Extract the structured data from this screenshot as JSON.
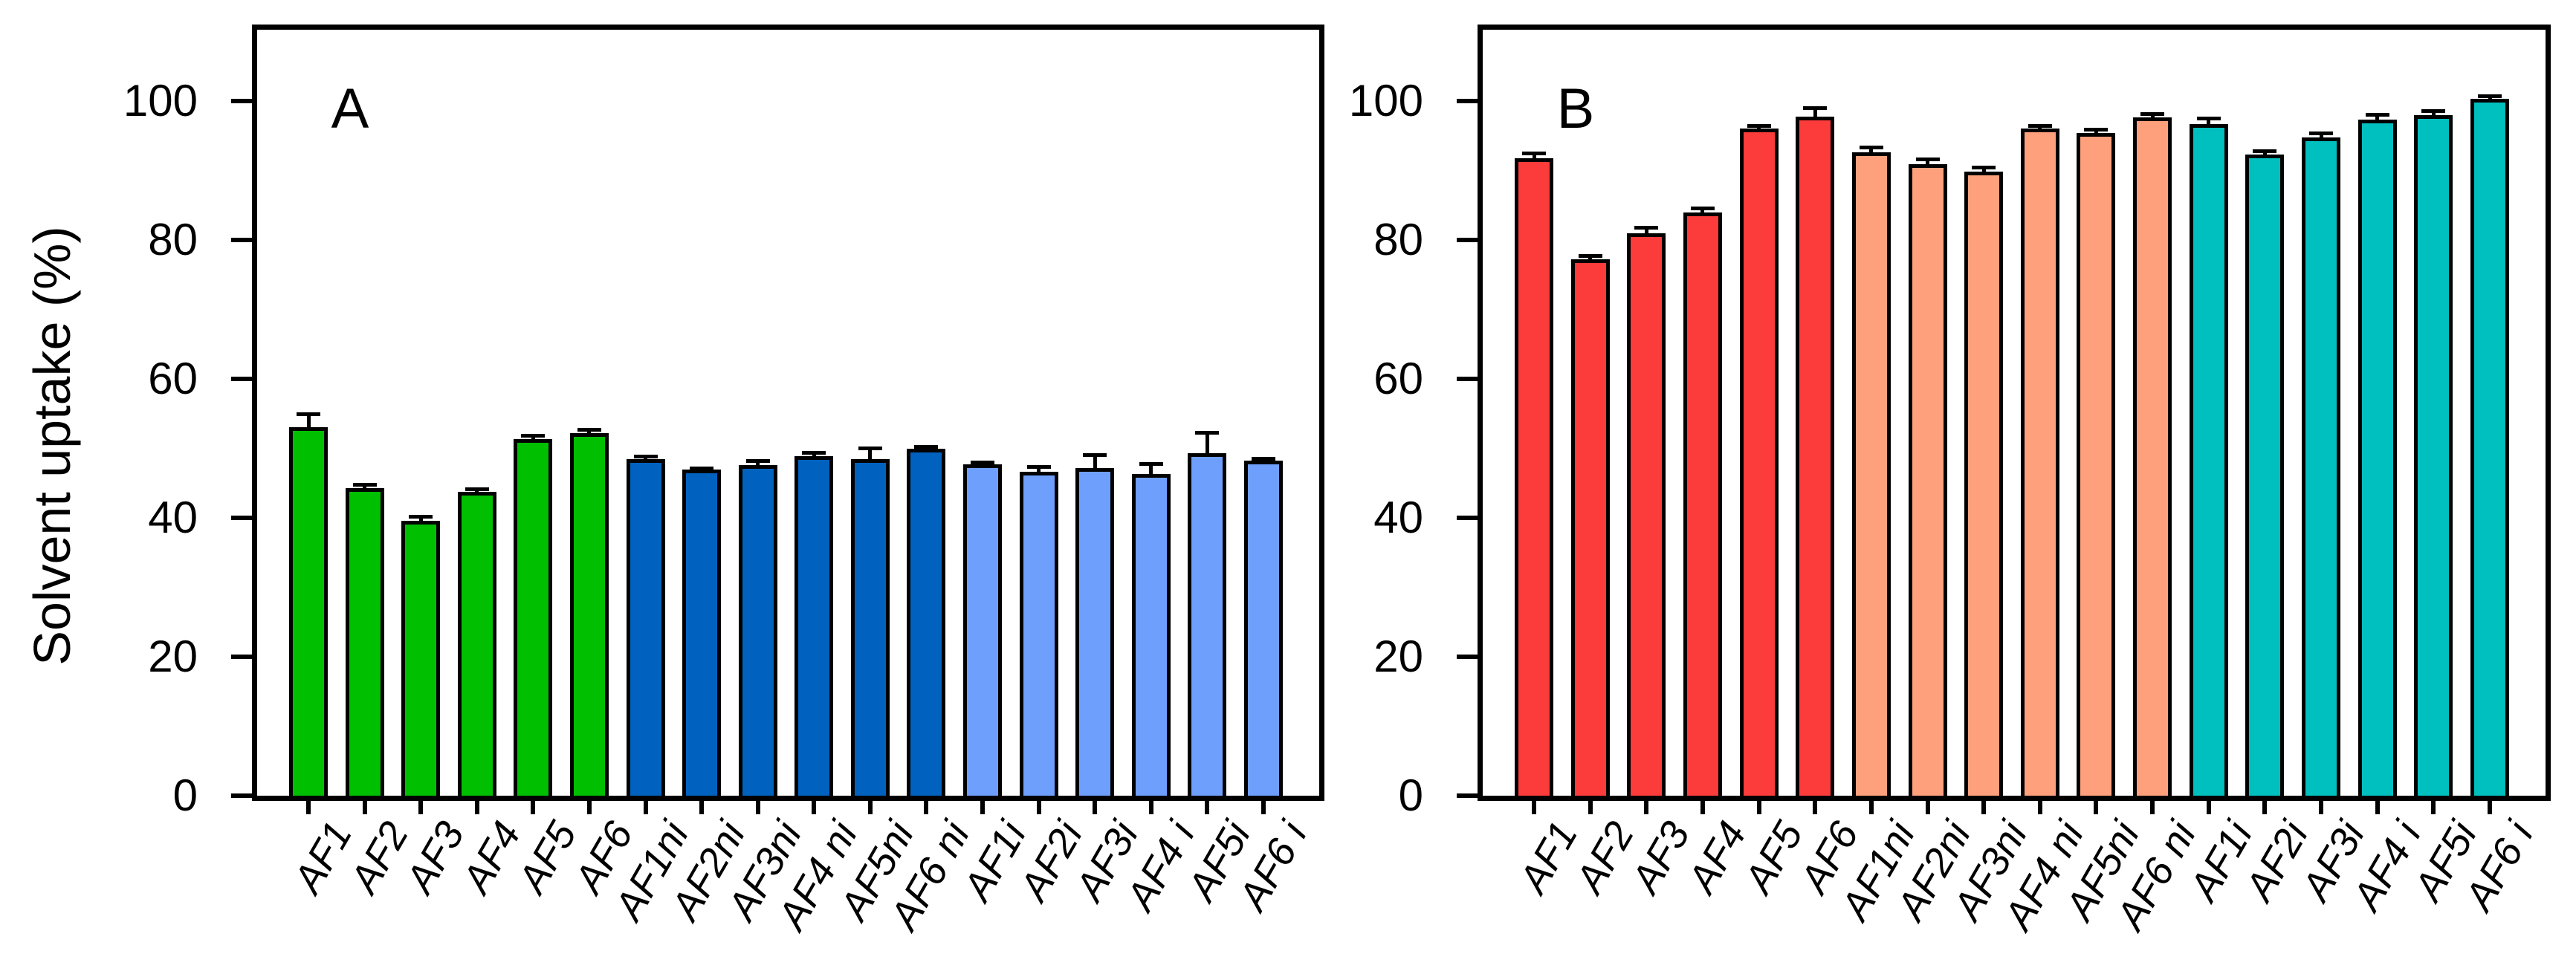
{
  "figure": {
    "ylabel": "Solvent uptake (%)",
    "background": "#ffffff",
    "axis_color": "#000000"
  },
  "chart_data": [
    {
      "type": "bar",
      "panel_label": "A",
      "ylabel": "Solvent uptake (%)",
      "ylim": [
        0,
        111
      ],
      "yticks": [
        0,
        20,
        40,
        60,
        80,
        100
      ],
      "grid": false,
      "legend": "none",
      "categories": [
        "AF1",
        "AF2",
        "AF3",
        "AF4",
        "AF5",
        "AF6",
        "AF1ni",
        "AF2ni",
        "AF3ni",
        "AF4 ni",
        "AF5ni",
        "AF6 ni",
        "AF1i",
        "AF2i",
        "AF3i",
        "AF4 i",
        "AF5i",
        "AF6 i"
      ],
      "values": [
        53.0,
        44.3,
        39.6,
        43.7,
        51.3,
        52.2,
        48.4,
        46.9,
        47.6,
        48.9,
        48.4,
        49.9,
        47.7,
        46.6,
        47.2,
        46.3,
        49.3,
        48.2
      ],
      "errors": [
        2.0,
        0.5,
        0.6,
        0.5,
        0.6,
        0.5,
        0.5,
        0.3,
        0.6,
        0.5,
        1.7,
        0.4,
        0.3,
        0.8,
        1.9,
        1.5,
        3.0,
        0.4
      ],
      "groups": [
        {
          "name": "AF1-AF6",
          "color": "#00be00",
          "count": 6
        },
        {
          "name": "AF1ni-AF6ni",
          "color": "#0062be",
          "count": 6
        },
        {
          "name": "AF1i-AF6i",
          "color": "#6f9ffc",
          "count": 6
        }
      ]
    },
    {
      "type": "bar",
      "panel_label": "B",
      "ylabel": "",
      "ylim": [
        0,
        111
      ],
      "yticks": [
        0,
        20,
        40,
        60,
        80,
        100
      ],
      "grid": false,
      "legend": "none",
      "categories": [
        "AF1",
        "AF2",
        "AF3",
        "AF4",
        "AF5",
        "AF6",
        "AF1ni",
        "AF2ni",
        "AF3ni",
        "AF4 ni",
        "AF5ni",
        "AF6 ni",
        "AF1i",
        "AF2i",
        "AF3i",
        "AF4 i",
        "AF5i",
        "AF6 i"
      ],
      "values": [
        91.8,
        77.2,
        81.0,
        84.0,
        96.0,
        97.8,
        92.6,
        90.9,
        89.8,
        96.0,
        95.4,
        97.6,
        96.7,
        92.3,
        94.8,
        97.3,
        98.0,
        100.3
      ],
      "errors": [
        0.7,
        0.6,
        0.8,
        0.6,
        0.5,
        1.2,
        0.8,
        0.8,
        0.7,
        0.5,
        0.5,
        0.6,
        0.8,
        0.5,
        0.6,
        0.8,
        0.6,
        0.5
      ],
      "groups": [
        {
          "name": "AF1-AF6",
          "color": "#fc3b3b",
          "count": 6
        },
        {
          "name": "AF1ni-AF6ni",
          "color": "#ffa07d",
          "count": 6
        },
        {
          "name": "AF1i-AF6i",
          "color": "#00bfbf",
          "count": 6
        }
      ]
    }
  ]
}
